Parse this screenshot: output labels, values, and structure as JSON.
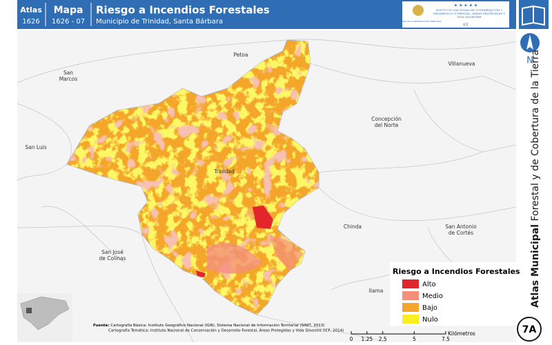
{
  "header": {
    "atlas_label": "Atlas",
    "atlas_number": "1626",
    "map_label": "Mapa",
    "map_number": "1626 - 07",
    "title": "Riesgo a Incendios Forestales",
    "subtitle": "Municipio de Trinidad, Santa Bárbara"
  },
  "logo": {
    "government": "GOBIERNO DE LA REPÚBLICA DE HONDURAS",
    "institute": "INSTITUTO NACIONAL DE CONSERVACIÓN Y DESARROLLO FORESTAL, ÁREAS PROTEGIDAS Y VIDA SILVESTRE",
    "acronym": "ICF"
  },
  "sidebar": {
    "north": "N",
    "atlas_title_bold": "Atlas Municipal",
    "atlas_title": "Forestal y de Cobertura de la Tierra",
    "plate": "7A"
  },
  "places": [
    {
      "lines": [
        "Petoa"
      ]
    },
    {
      "lines": [
        "San",
        "Marcos"
      ]
    },
    {
      "lines": [
        "Villanueva"
      ]
    },
    {
      "lines": [
        "Concepción",
        "del Norte"
      ]
    },
    {
      "lines": [
        "San Luis"
      ]
    },
    {
      "lines": [
        "Trinidad"
      ]
    },
    {
      "lines": [
        "Chinda"
      ]
    },
    {
      "lines": [
        "San Antonio",
        "de Cortés"
      ]
    },
    {
      "lines": [
        "San José",
        "de Colinas"
      ]
    },
    {
      "lines": [
        "Ilama"
      ]
    }
  ],
  "legend": {
    "title": "Riesgo a Incendios Forestales",
    "items": [
      {
        "label": "Alto",
        "color": "#e3262b"
      },
      {
        "label": "Medio",
        "color": "#f4907a"
      },
      {
        "label": "Bajo",
        "color": "#f4a62a"
      },
      {
        "label": "Nulo",
        "color": "#f8ee22"
      }
    ]
  },
  "scale_bar": {
    "ticks": [
      0,
      1.25,
      2.5,
      5,
      7.5
    ],
    "unit": "Kilómetros"
  },
  "source": {
    "label": "Fuente:",
    "lines": [
      "Cartografía Básica: Instituto Geográfico Nacional (IGN), Sistema Nacional de Información Territorial (SINIT, 2013)",
      "Cartografía Temática: Instituto Nacional de Conservación y Desarrollo Forestal, Áreas Protegidas y Vida Silvestre (ICF, 2014)"
    ]
  }
}
